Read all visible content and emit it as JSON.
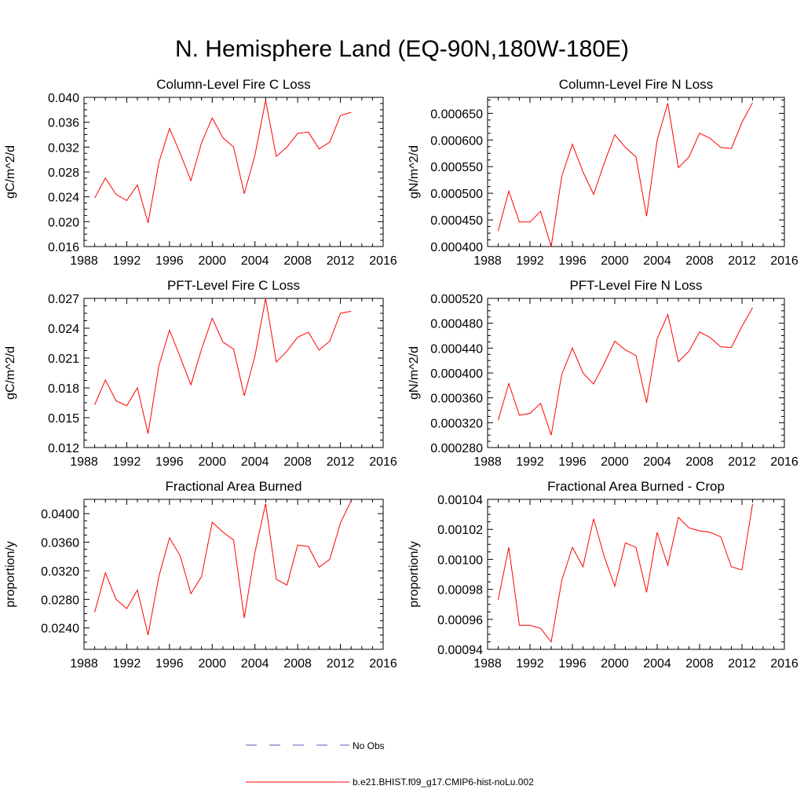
{
  "title": "N. Hemisphere Land (EQ-90N,180W-180E)",
  "legend": {
    "items": [
      {
        "label": "No Obs",
        "color": "#5a5ab4",
        "style": "dashed"
      },
      {
        "label": "b.e21.BHIST.f09_g17.CMIP6-hist-noLu.002",
        "color": "#ff0000",
        "style": "solid"
      }
    ]
  },
  "chart_data": [
    {
      "type": "line",
      "title": "Column-Level Fire C Loss",
      "ylabel": "gC/m^2/d",
      "xlim": [
        1988,
        2016
      ],
      "ylim": [
        0.016,
        0.04
      ],
      "xticks": [
        "1988",
        "1992",
        "1996",
        "2000",
        "2004",
        "2008",
        "2012",
        "2016"
      ],
      "yticks": [
        "0.016",
        "0.020",
        "0.024",
        "0.028",
        "0.032",
        "0.036",
        "0.040"
      ],
      "series": [
        {
          "name": "b.e21.BHIST.f09_g17.CMIP6-hist-noLu.002",
          "color": "#ff0000",
          "x": [
            1989,
            1990,
            1991,
            1992,
            1993,
            1994,
            1995,
            1996,
            1997,
            1998,
            1999,
            2000,
            2001,
            2002,
            2003,
            2004,
            2005,
            2006,
            2007,
            2008,
            2009,
            2010,
            2011,
            2012,
            2013
          ],
          "values": [
            0.0238,
            0.027,
            0.0244,
            0.0234,
            0.0259,
            0.0198,
            0.0295,
            0.035,
            0.031,
            0.0266,
            0.0327,
            0.0367,
            0.0335,
            0.032,
            0.0245,
            0.0307,
            0.0395,
            0.0305,
            0.032,
            0.0342,
            0.0344,
            0.0317,
            0.0328,
            0.0371,
            0.0376
          ]
        }
      ]
    },
    {
      "type": "line",
      "title": "Column-Level Fire N Loss",
      "ylabel": "gN/m^2/d",
      "xlim": [
        1988,
        2016
      ],
      "ylim": [
        0.0004,
        0.00068
      ],
      "xticks": [
        "1988",
        "1992",
        "1996",
        "2000",
        "2004",
        "2008",
        "2012",
        "2016"
      ],
      "yticks": [
        "0.000400",
        "0.000450",
        "0.000500",
        "0.000550",
        "0.000600",
        "0.000650"
      ],
      "series": [
        {
          "name": "b.e21.BHIST.f09_g17.CMIP6-hist-noLu.002",
          "color": "#ff0000",
          "x": [
            1989,
            1990,
            1991,
            1992,
            1993,
            1994,
            1995,
            1996,
            1997,
            1998,
            1999,
            2000,
            2001,
            2002,
            2003,
            2004,
            2005,
            2006,
            2007,
            2008,
            2009,
            2010,
            2011,
            2012,
            2013
          ],
          "values": [
            0.000429,
            0.000504,
            0.000446,
            0.000446,
            0.000466,
            0.0004,
            0.000532,
            0.000592,
            0.00054,
            0.000498,
            0.000556,
            0.00061,
            0.000586,
            0.000568,
            0.000457,
            0.0006,
            0.000669,
            0.000548,
            0.000568,
            0.000613,
            0.000603,
            0.000586,
            0.000584,
            0.000633,
            0.00067
          ]
        }
      ]
    },
    {
      "type": "line",
      "title": "PFT-Level Fire C Loss",
      "ylabel": "gC/m^2/d",
      "xlim": [
        1988,
        2016
      ],
      "ylim": [
        0.012,
        0.027
      ],
      "xticks": [
        "1988",
        "1992",
        "1996",
        "2000",
        "2004",
        "2008",
        "2012",
        "2016"
      ],
      "yticks": [
        "0.012",
        "0.015",
        "0.018",
        "0.021",
        "0.024",
        "0.027"
      ],
      "series": [
        {
          "name": "b.e21.BHIST.f09_g17.CMIP6-hist-noLu.002",
          "color": "#ff0000",
          "x": [
            1989,
            1990,
            1991,
            1992,
            1993,
            1994,
            1995,
            1996,
            1997,
            1998,
            1999,
            2000,
            2001,
            2002,
            2003,
            2004,
            2005,
            2006,
            2007,
            2008,
            2009,
            2010,
            2011,
            2012,
            2013
          ],
          "values": [
            0.0163,
            0.0188,
            0.0167,
            0.0162,
            0.018,
            0.0134,
            0.0202,
            0.0238,
            0.0211,
            0.0183,
            0.0219,
            0.025,
            0.0226,
            0.0219,
            0.0172,
            0.0212,
            0.027,
            0.0206,
            0.0217,
            0.0231,
            0.0236,
            0.0218,
            0.0227,
            0.0255,
            0.0257
          ]
        }
      ]
    },
    {
      "type": "line",
      "title": "PFT-Level Fire N Loss",
      "ylabel": "gN/m^2/d",
      "xlim": [
        1988,
        2016
      ],
      "ylim": [
        0.00028,
        0.00052
      ],
      "xticks": [
        "1988",
        "1992",
        "1996",
        "2000",
        "2004",
        "2008",
        "2012",
        "2016"
      ],
      "yticks": [
        "0.000280",
        "0.000320",
        "0.000360",
        "0.000400",
        "0.000440",
        "0.000480",
        "0.000520"
      ],
      "series": [
        {
          "name": "b.e21.BHIST.f09_g17.CMIP6-hist-noLu.002",
          "color": "#ff0000",
          "x": [
            1989,
            1990,
            1991,
            1992,
            1993,
            1994,
            1995,
            1996,
            1997,
            1998,
            1999,
            2000,
            2001,
            2002,
            2003,
            2004,
            2005,
            2006,
            2007,
            2008,
            2009,
            2010,
            2011,
            2012,
            2013
          ],
          "values": [
            0.000324,
            0.000383,
            0.000332,
            0.000335,
            0.000351,
            0.0003,
            0.000398,
            0.00044,
            0.0004,
            0.000382,
            0.000415,
            0.000451,
            0.000437,
            0.000428,
            0.000352,
            0.000455,
            0.000494,
            0.000418,
            0.000435,
            0.000466,
            0.000457,
            0.000442,
            0.000441,
            0.000475,
            0.000505
          ]
        }
      ]
    },
    {
      "type": "line",
      "title": "Fractional Area Burned",
      "ylabel": "proportion/y",
      "xlim": [
        1988,
        2016
      ],
      "ylim": [
        0.021,
        0.042
      ],
      "xticks": [
        "1988",
        "1992",
        "1996",
        "2000",
        "2004",
        "2008",
        "2012",
        "2016"
      ],
      "yticks": [
        "0.0240",
        "0.0280",
        "0.0320",
        "0.0360",
        "0.0400"
      ],
      "series": [
        {
          "name": "b.e21.BHIST.f09_g17.CMIP6-hist-noLu.002",
          "color": "#ff0000",
          "x": [
            1989,
            1990,
            1991,
            1992,
            1993,
            1994,
            1995,
            1996,
            1997,
            1998,
            1999,
            2000,
            2001,
            2002,
            2003,
            2004,
            2005,
            2006,
            2007,
            2008,
            2009,
            2010,
            2011,
            2012,
            2013
          ],
          "values": [
            0.0262,
            0.0317,
            0.028,
            0.0267,
            0.0293,
            0.023,
            0.0312,
            0.0366,
            0.0341,
            0.0288,
            0.0312,
            0.0388,
            0.0374,
            0.0363,
            0.0254,
            0.0346,
            0.0414,
            0.0308,
            0.03,
            0.0356,
            0.0354,
            0.0325,
            0.0336,
            0.0387,
            0.0418
          ]
        }
      ]
    },
    {
      "type": "line",
      "title": "Fractional Area Burned - Crop",
      "ylabel": "proportion/y",
      "xlim": [
        1988,
        2016
      ],
      "ylim": [
        0.00094,
        0.00104
      ],
      "xticks": [
        "1988",
        "1992",
        "1996",
        "2000",
        "2004",
        "2008",
        "2012",
        "2016"
      ],
      "yticks": [
        "0.00094",
        "0.00096",
        "0.00098",
        "0.00100",
        "0.00102",
        "0.00104"
      ],
      "series": [
        {
          "name": "b.e21.BHIST.f09_g17.CMIP6-hist-noLu.002",
          "color": "#ff0000",
          "x": [
            1989,
            1990,
            1991,
            1992,
            1993,
            1994,
            1995,
            1996,
            1997,
            1998,
            1999,
            2000,
            2001,
            2002,
            2003,
            2004,
            2005,
            2006,
            2007,
            2008,
            2009,
            2010,
            2011,
            2012,
            2013
          ],
          "values": [
            0.000973,
            0.001008,
            0.000956,
            0.000956,
            0.000954,
            0.000945,
            0.000986,
            0.001008,
            0.000995,
            0.001027,
            0.001002,
            0.000982,
            0.001011,
            0.001008,
            0.000978,
            0.001018,
            0.000996,
            0.001028,
            0.001021,
            0.001019,
            0.001018,
            0.001015,
            0.000995,
            0.000993,
            0.001037
          ]
        }
      ]
    }
  ]
}
